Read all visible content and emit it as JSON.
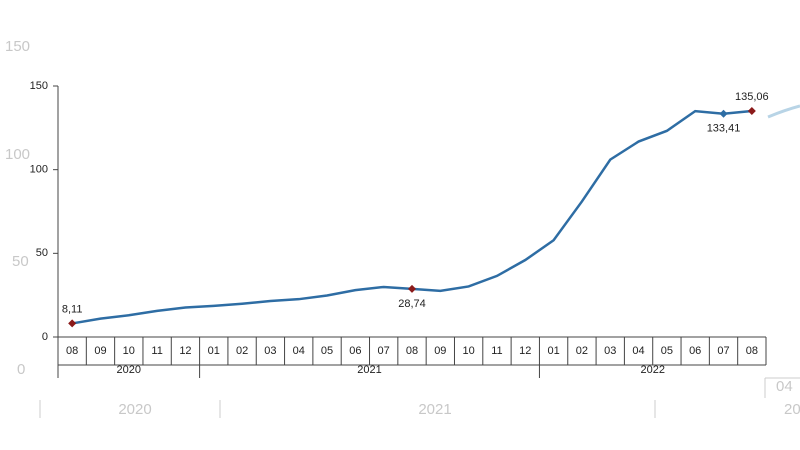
{
  "background": {
    "y_labels": [
      "150",
      "100",
      "50",
      "0"
    ],
    "x_labels": [
      "2020",
      "2021",
      "04",
      "20"
    ]
  },
  "chart_data": {
    "type": "line",
    "categories": [
      "08",
      "09",
      "10",
      "11",
      "12",
      "01",
      "02",
      "03",
      "04",
      "05",
      "06",
      "07",
      "08",
      "09",
      "10",
      "11",
      "12",
      "01",
      "02",
      "03",
      "04",
      "05",
      "06",
      "07",
      "08"
    ],
    "x_groups": [
      "2020",
      "2020",
      "2020",
      "2020",
      "2020",
      "2021",
      "2021",
      "2021",
      "2021",
      "2021",
      "2021",
      "2021",
      "2021",
      "2021",
      "2021",
      "2021",
      "2021",
      "2022",
      "2022",
      "2022",
      "2022",
      "2022",
      "2022",
      "2022",
      "2022"
    ],
    "series": [
      {
        "color": "#2e6da4",
        "values": [
          8.11,
          11,
          13,
          15.6,
          17.6,
          18.6,
          19.9,
          21.5,
          22.6,
          24.8,
          28,
          29.9,
          28.74,
          27.6,
          30.2,
          36.5,
          46,
          57.8,
          81,
          106,
          116.8,
          123.2,
          135,
          133.41,
          135.06
        ],
        "value_labels": [
          "8,11",
          null,
          null,
          null,
          null,
          null,
          null,
          null,
          null,
          null,
          null,
          null,
          "28,74",
          null,
          null,
          null,
          null,
          null,
          null,
          null,
          null,
          null,
          null,
          "133,41",
          "135,06"
        ],
        "marker_colors": [
          "#8b1a1a",
          null,
          null,
          null,
          null,
          null,
          null,
          null,
          null,
          null,
          null,
          null,
          "#8b1a1a",
          null,
          null,
          null,
          null,
          null,
          null,
          null,
          null,
          null,
          null,
          "#2e6da4",
          "#8b1a1a"
        ]
      }
    ],
    "ylim": [
      0,
      150
    ],
    "yticks": [
      0,
      50,
      100,
      150
    ]
  }
}
